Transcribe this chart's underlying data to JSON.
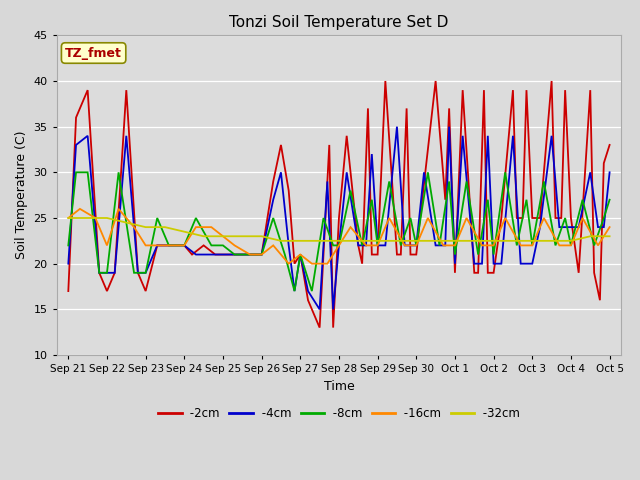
{
  "title": "Tonzi Soil Temperature Set D",
  "xlabel": "Time",
  "ylabel": "Soil Temperature (C)",
  "ylim": [
    10,
    45
  ],
  "background_color": "#d8d8d8",
  "plot_bg": "#dcdcdc",
  "grid_color": "white",
  "xtick_labels": [
    "Sep 21",
    "Sep 22",
    "Sep 23",
    "Sep 24",
    "Sep 25",
    "Sep 26",
    "Sep 27",
    "Sep 28",
    "Sep 29",
    "Sep 30",
    "Oct 1",
    "Oct 2",
    "Oct 3",
    "Oct 4",
    "Oct 5"
  ],
  "xtick_positions": [
    0,
    1,
    2,
    3,
    4,
    5,
    6,
    7,
    8,
    9,
    10,
    11,
    12,
    13,
    14
  ],
  "colors": {
    "-2cm": "#cc0000",
    "-4cm": "#0000cc",
    "-8cm": "#00aa00",
    "-16cm": "#ff8800",
    "-32cm": "#cccc00"
  },
  "times_2cm": [
    0.0,
    0.2,
    0.5,
    0.8,
    1.0,
    1.2,
    1.5,
    1.8,
    2.0,
    2.3,
    2.5,
    2.7,
    2.9,
    3.0,
    3.2,
    3.5,
    3.8,
    4.0,
    4.3,
    4.6,
    5.0,
    5.3,
    5.5,
    5.7,
    5.85,
    6.0,
    6.2,
    6.5,
    6.6,
    6.75,
    6.85,
    7.0,
    7.2,
    7.5,
    7.6,
    7.75,
    7.85,
    8.0,
    8.2,
    8.5,
    8.6,
    8.75,
    8.85,
    9.0,
    9.1,
    9.5,
    9.75,
    9.85,
    10.0,
    10.2,
    10.5,
    10.6,
    10.75,
    10.85,
    11.0,
    11.2,
    11.5,
    11.6,
    11.75,
    11.85,
    12.0,
    12.2,
    12.5,
    12.6,
    12.75,
    12.85,
    13.0,
    13.2,
    13.5,
    13.6,
    13.75,
    13.85,
    14.0
  ],
  "vals_2cm": [
    17,
    36,
    39,
    19,
    17,
    19,
    39,
    19,
    17,
    22,
    22,
    22,
    22,
    22,
    21,
    22,
    21,
    21,
    21,
    21,
    21,
    29,
    33,
    28,
    20,
    21,
    16,
    13,
    21,
    33,
    13,
    25,
    34,
    22,
    20,
    37,
    21,
    21,
    40,
    21,
    21,
    37,
    21,
    21,
    25,
    40,
    27,
    37,
    19,
    39,
    19,
    19,
    39,
    19,
    19,
    25,
    39,
    25,
    25,
    39,
    25,
    25,
    40,
    25,
    25,
    39,
    25,
    19,
    39,
    19,
    16,
    31,
    33
  ],
  "times_4cm": [
    0.0,
    0.2,
    0.5,
    0.8,
    1.0,
    1.2,
    1.5,
    1.8,
    2.0,
    2.3,
    2.5,
    2.7,
    2.9,
    3.0,
    3.3,
    3.7,
    4.0,
    4.3,
    4.6,
    5.0,
    5.3,
    5.5,
    5.7,
    5.85,
    6.0,
    6.2,
    6.5,
    6.7,
    6.85,
    7.0,
    7.2,
    7.5,
    7.7,
    7.85,
    8.0,
    8.2,
    8.5,
    8.7,
    8.85,
    9.0,
    9.2,
    9.5,
    9.75,
    9.85,
    10.0,
    10.2,
    10.5,
    10.7,
    10.85,
    11.0,
    11.2,
    11.5,
    11.7,
    11.85,
    12.0,
    12.2,
    12.5,
    12.7,
    12.85,
    13.0,
    13.2,
    13.5,
    13.7,
    13.85,
    14.0
  ],
  "vals_4cm": [
    20,
    33,
    34,
    19,
    19,
    19,
    34,
    19,
    19,
    22,
    22,
    22,
    22,
    22,
    21,
    21,
    21,
    21,
    21,
    21,
    27,
    30,
    22,
    17,
    21,
    17,
    15,
    29,
    15,
    22,
    30,
    22,
    22,
    32,
    22,
    22,
    35,
    22,
    22,
    22,
    30,
    22,
    22,
    35,
    20,
    34,
    20,
    20,
    34,
    20,
    20,
    34,
    20,
    20,
    20,
    24,
    34,
    24,
    24,
    24,
    24,
    30,
    24,
    24,
    30
  ],
  "times_8cm": [
    0.0,
    0.2,
    0.5,
    0.8,
    1.0,
    1.3,
    1.7,
    2.0,
    2.3,
    2.6,
    3.0,
    3.3,
    3.7,
    4.0,
    4.3,
    4.6,
    5.0,
    5.3,
    5.6,
    5.85,
    6.0,
    6.3,
    6.6,
    6.85,
    7.0,
    7.3,
    7.6,
    7.85,
    8.0,
    8.3,
    8.6,
    8.85,
    9.0,
    9.3,
    9.6,
    9.85,
    10.0,
    10.3,
    10.6,
    10.85,
    11.0,
    11.3,
    11.6,
    11.85,
    12.0,
    12.3,
    12.6,
    12.85,
    13.0,
    13.3,
    13.6,
    13.85,
    14.0
  ],
  "vals_8cm": [
    22,
    30,
    30,
    19,
    19,
    30,
    19,
    19,
    25,
    22,
    22,
    25,
    22,
    22,
    21,
    21,
    21,
    25,
    21,
    17,
    21,
    17,
    25,
    22,
    22,
    28,
    22,
    27,
    22,
    29,
    22,
    25,
    22,
    30,
    22,
    29,
    21,
    29,
    21,
    27,
    21,
    30,
    22,
    27,
    22,
    29,
    22,
    25,
    22,
    27,
    22,
    25,
    27
  ],
  "times_16cm": [
    0.0,
    0.3,
    0.7,
    1.0,
    1.3,
    1.7,
    2.0,
    2.3,
    2.7,
    3.0,
    3.3,
    3.7,
    4.0,
    4.3,
    4.7,
    5.0,
    5.3,
    5.7,
    6.0,
    6.3,
    6.7,
    7.0,
    7.3,
    7.7,
    8.0,
    8.3,
    8.7,
    9.0,
    9.3,
    9.7,
    10.0,
    10.3,
    10.7,
    11.0,
    11.3,
    11.7,
    12.0,
    12.3,
    12.7,
    13.0,
    13.3,
    13.7,
    14.0
  ],
  "vals_16cm": [
    25,
    26,
    25,
    22,
    26,
    24,
    22,
    22,
    22,
    22,
    24,
    24,
    23,
    22,
    21,
    21,
    22,
    20,
    21,
    20,
    20,
    22,
    24,
    22,
    22,
    25,
    22,
    22,
    25,
    22,
    22,
    25,
    22,
    22,
    25,
    22,
    22,
    25,
    22,
    22,
    25,
    22,
    24
  ],
  "times_32cm": [
    0.0,
    0.5,
    1.0,
    1.5,
    2.0,
    2.5,
    3.0,
    3.5,
    4.0,
    4.5,
    5.0,
    5.5,
    6.0,
    6.5,
    7.0,
    7.5,
    8.0,
    8.5,
    9.0,
    9.5,
    10.0,
    10.5,
    11.0,
    11.5,
    12.0,
    12.5,
    13.0,
    13.5,
    14.0
  ],
  "vals_32cm": [
    25,
    25,
    25,
    24.5,
    24,
    24,
    23.5,
    23,
    23,
    23,
    23,
    22.5,
    22.5,
    22.5,
    22.5,
    22.5,
    22.5,
    22.5,
    22.5,
    22.5,
    22.5,
    22.5,
    22.5,
    22.5,
    22.5,
    22.5,
    22.5,
    23,
    23
  ]
}
